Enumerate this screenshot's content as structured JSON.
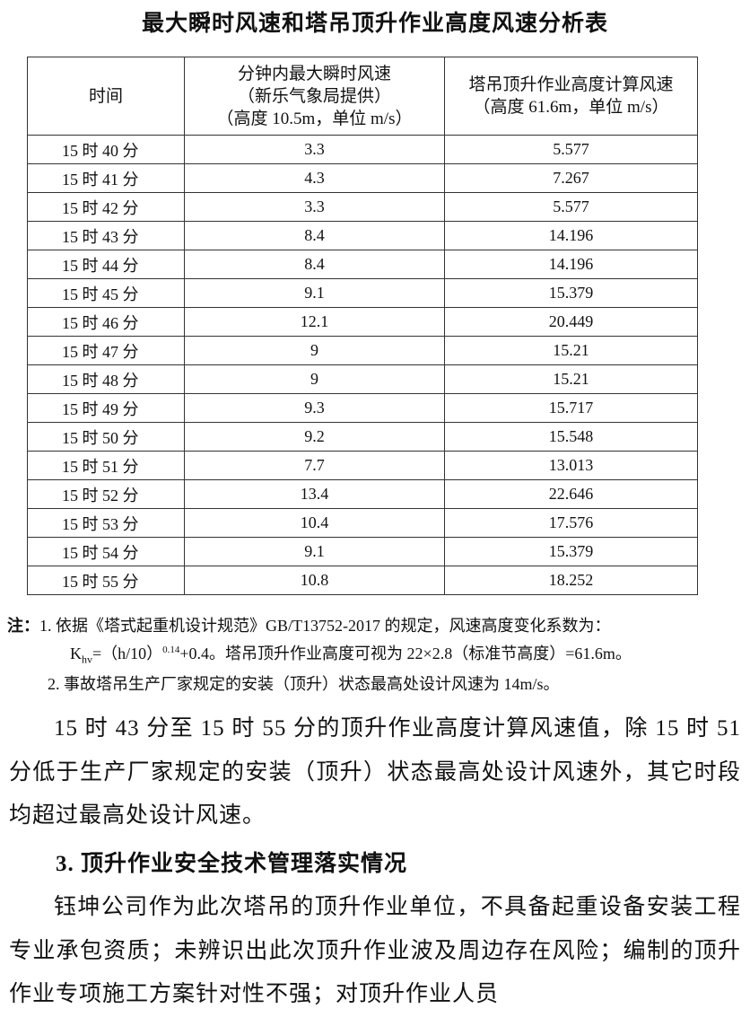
{
  "title": "最大瞬时风速和塔吊顶升作业高度风速分析表",
  "table": {
    "headers": [
      "时间",
      [
        "分钟内最大瞬时风速",
        "（新乐气象局提供）",
        "（高度 10.5m，单位 m/s）"
      ],
      [
        "塔吊顶升作业高度计算风速",
        "（高度 61.6m，单位 m/s）"
      ]
    ],
    "rows": [
      [
        "15 时 40 分",
        "3.3",
        "5.577"
      ],
      [
        "15 时 41 分",
        "4.3",
        "7.267"
      ],
      [
        "15 时 42 分",
        "3.3",
        "5.577"
      ],
      [
        "15 时 43 分",
        "8.4",
        "14.196"
      ],
      [
        "15 时 44 分",
        "8.4",
        "14.196"
      ],
      [
        "15 时 45 分",
        "9.1",
        "15.379"
      ],
      [
        "15 时 46 分",
        "12.1",
        "20.449"
      ],
      [
        "15 时 47 分",
        "9",
        "15.21"
      ],
      [
        "15 时 48 分",
        "9",
        "15.21"
      ],
      [
        "15 时 49 分",
        "9.3",
        "15.717"
      ],
      [
        "15 时 50 分",
        "9.2",
        "15.548"
      ],
      [
        "15 时 51 分",
        "7.7",
        "13.013"
      ],
      [
        "15 时 52 分",
        "13.4",
        "22.646"
      ],
      [
        "15 时 53 分",
        "10.4",
        "17.576"
      ],
      [
        "15 时 54 分",
        "9.1",
        "15.379"
      ],
      [
        "15 时 55 分",
        "10.8",
        "18.252"
      ]
    ]
  },
  "notes": {
    "label": "注：",
    "n1a": "1. 依据《塔式起重机设计规范》GB/T13752-2017 的规定，风速高度变化系数为：",
    "n1b_k": "K",
    "n1b_sub": "hv",
    "n1b_mid": "=（h/10）",
    "n1b_sup": "0.14",
    "n1b_end": "+0.4。塔吊顶升作业高度可视为 22×2.8（标准节高度）=61.6m。",
    "n2": "2. 事故塔吊生产厂家规定的安装（顶升）状态最高处设计风速为 14m/s。"
  },
  "paragraph1": "15 时 43 分至 15 时 55 分的顶升作业高度计算风速值，除 15 时 51 分低于生产厂家规定的安装（顶升）状态最高处设计风速外，其它时段均超过最高处设计风速。",
  "heading3": "3. 顶升作业安全技术管理落实情况",
  "paragraph2": "钰坤公司作为此次塔吊的顶升作业单位，不具备起重设备安装工程专业承包资质；未辨识出此次顶升作业波及周边存在风险；编制的顶升作业专项施工方案针对性不强；对顶升作业人员"
}
